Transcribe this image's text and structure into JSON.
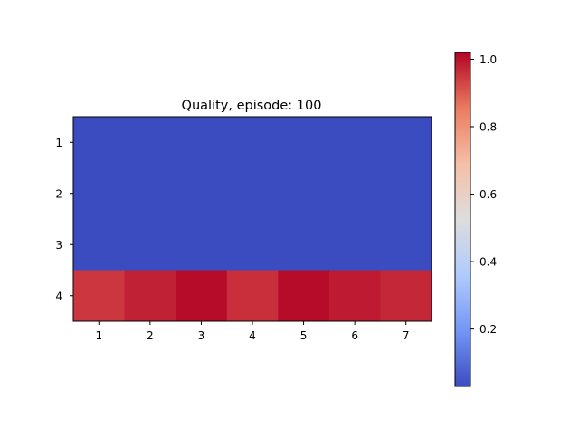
{
  "chart_data": {
    "type": "heatmap",
    "title": "Quality, episode: 100",
    "xlabel": "",
    "ylabel": "",
    "x_categories": [
      "1",
      "2",
      "3",
      "4",
      "5",
      "6",
      "7"
    ],
    "y_categories": [
      "1",
      "2",
      "3",
      "4"
    ],
    "values": [
      [
        0.03,
        0.03,
        0.03,
        0.03,
        0.03,
        0.03,
        0.03
      ],
      [
        0.03,
        0.03,
        0.03,
        0.03,
        0.03,
        0.03,
        0.03
      ],
      [
        0.03,
        0.03,
        0.03,
        0.03,
        0.03,
        0.03,
        0.03
      ],
      [
        0.95,
        0.98,
        1.01,
        0.96,
        1.01,
        0.99,
        0.97
      ]
    ],
    "colormap": "coolwarm",
    "colormap_stops": [
      "#3b4cc0",
      "#7396f5",
      "#b0cbfc",
      "#dddddd",
      "#f6bfa6",
      "#ea7b60",
      "#b40426"
    ],
    "colorbar": {
      "range": [
        0.03,
        1.02
      ],
      "ticks": [
        0.2,
        0.4,
        0.6,
        0.8,
        1.0
      ],
      "tick_labels": [
        "0.2",
        "0.4",
        "0.6",
        "0.8",
        "1.0"
      ]
    },
    "grid": false
  }
}
